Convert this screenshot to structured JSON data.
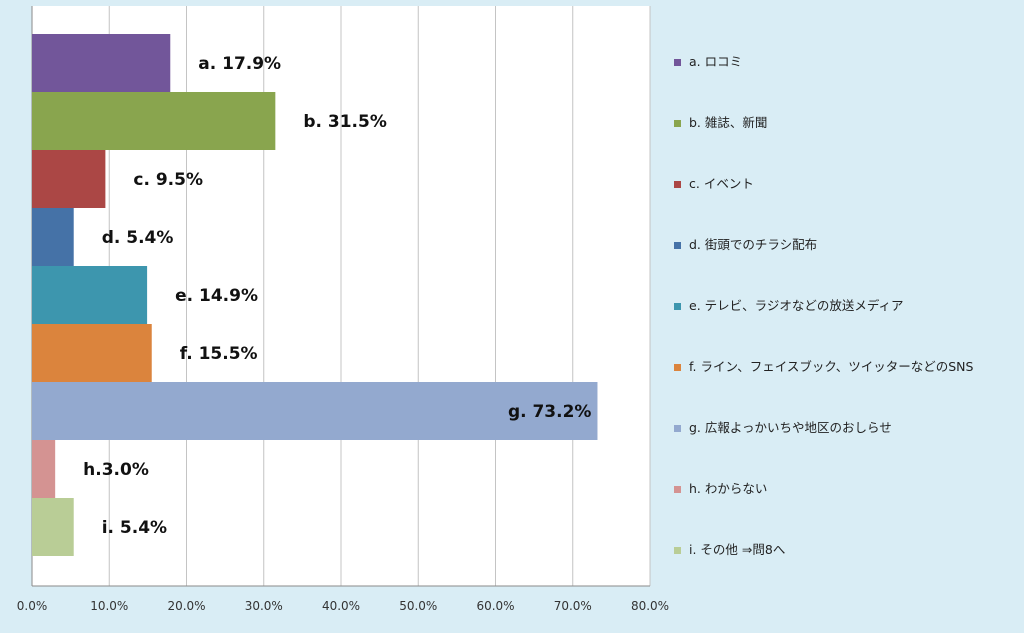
{
  "chart_data": {
    "type": "bar",
    "orientation": "horizontal",
    "categories": [
      "a. ロコミ",
      "b. 雑誌、新聞",
      "c. イベント",
      "d. 街頭でのチラシ配布",
      "e. テレビ、ラジオなどの放送メディア",
      "f. ライン、フェイスブック、ツイッターなどのSNS",
      "g. 広報よっかいちや地区のおしらせ",
      "h. わからない",
      "i. その他 ⇒問8へ"
    ],
    "values": [
      17.9,
      31.5,
      9.5,
      5.4,
      14.9,
      15.5,
      73.2,
      3.0,
      5.4
    ],
    "data_labels": [
      "a. 17.9%",
      "b. 31.5%",
      "c. 9.5%",
      "d.  5.4%",
      "e. 14.9%",
      "f.  15.5%",
      "g. 73.2%",
      "h.3.0%",
      "i.  5.4%"
    ],
    "colors": [
      "#72569a",
      "#89a54e",
      "#ab4745",
      "#4572a7",
      "#3d96ae",
      "#db843d",
      "#93a9cf",
      "#d49392",
      "#b9cd96"
    ],
    "x_ticks": [
      "0.0%",
      "10.0%",
      "20.0%",
      "30.0%",
      "40.0%",
      "50.0%",
      "60.0%",
      "70.0%",
      "80.0%"
    ],
    "xlim": [
      0,
      80
    ],
    "grid": true,
    "legend_position": "right",
    "title": "",
    "xlabel": "",
    "ylabel": ""
  }
}
